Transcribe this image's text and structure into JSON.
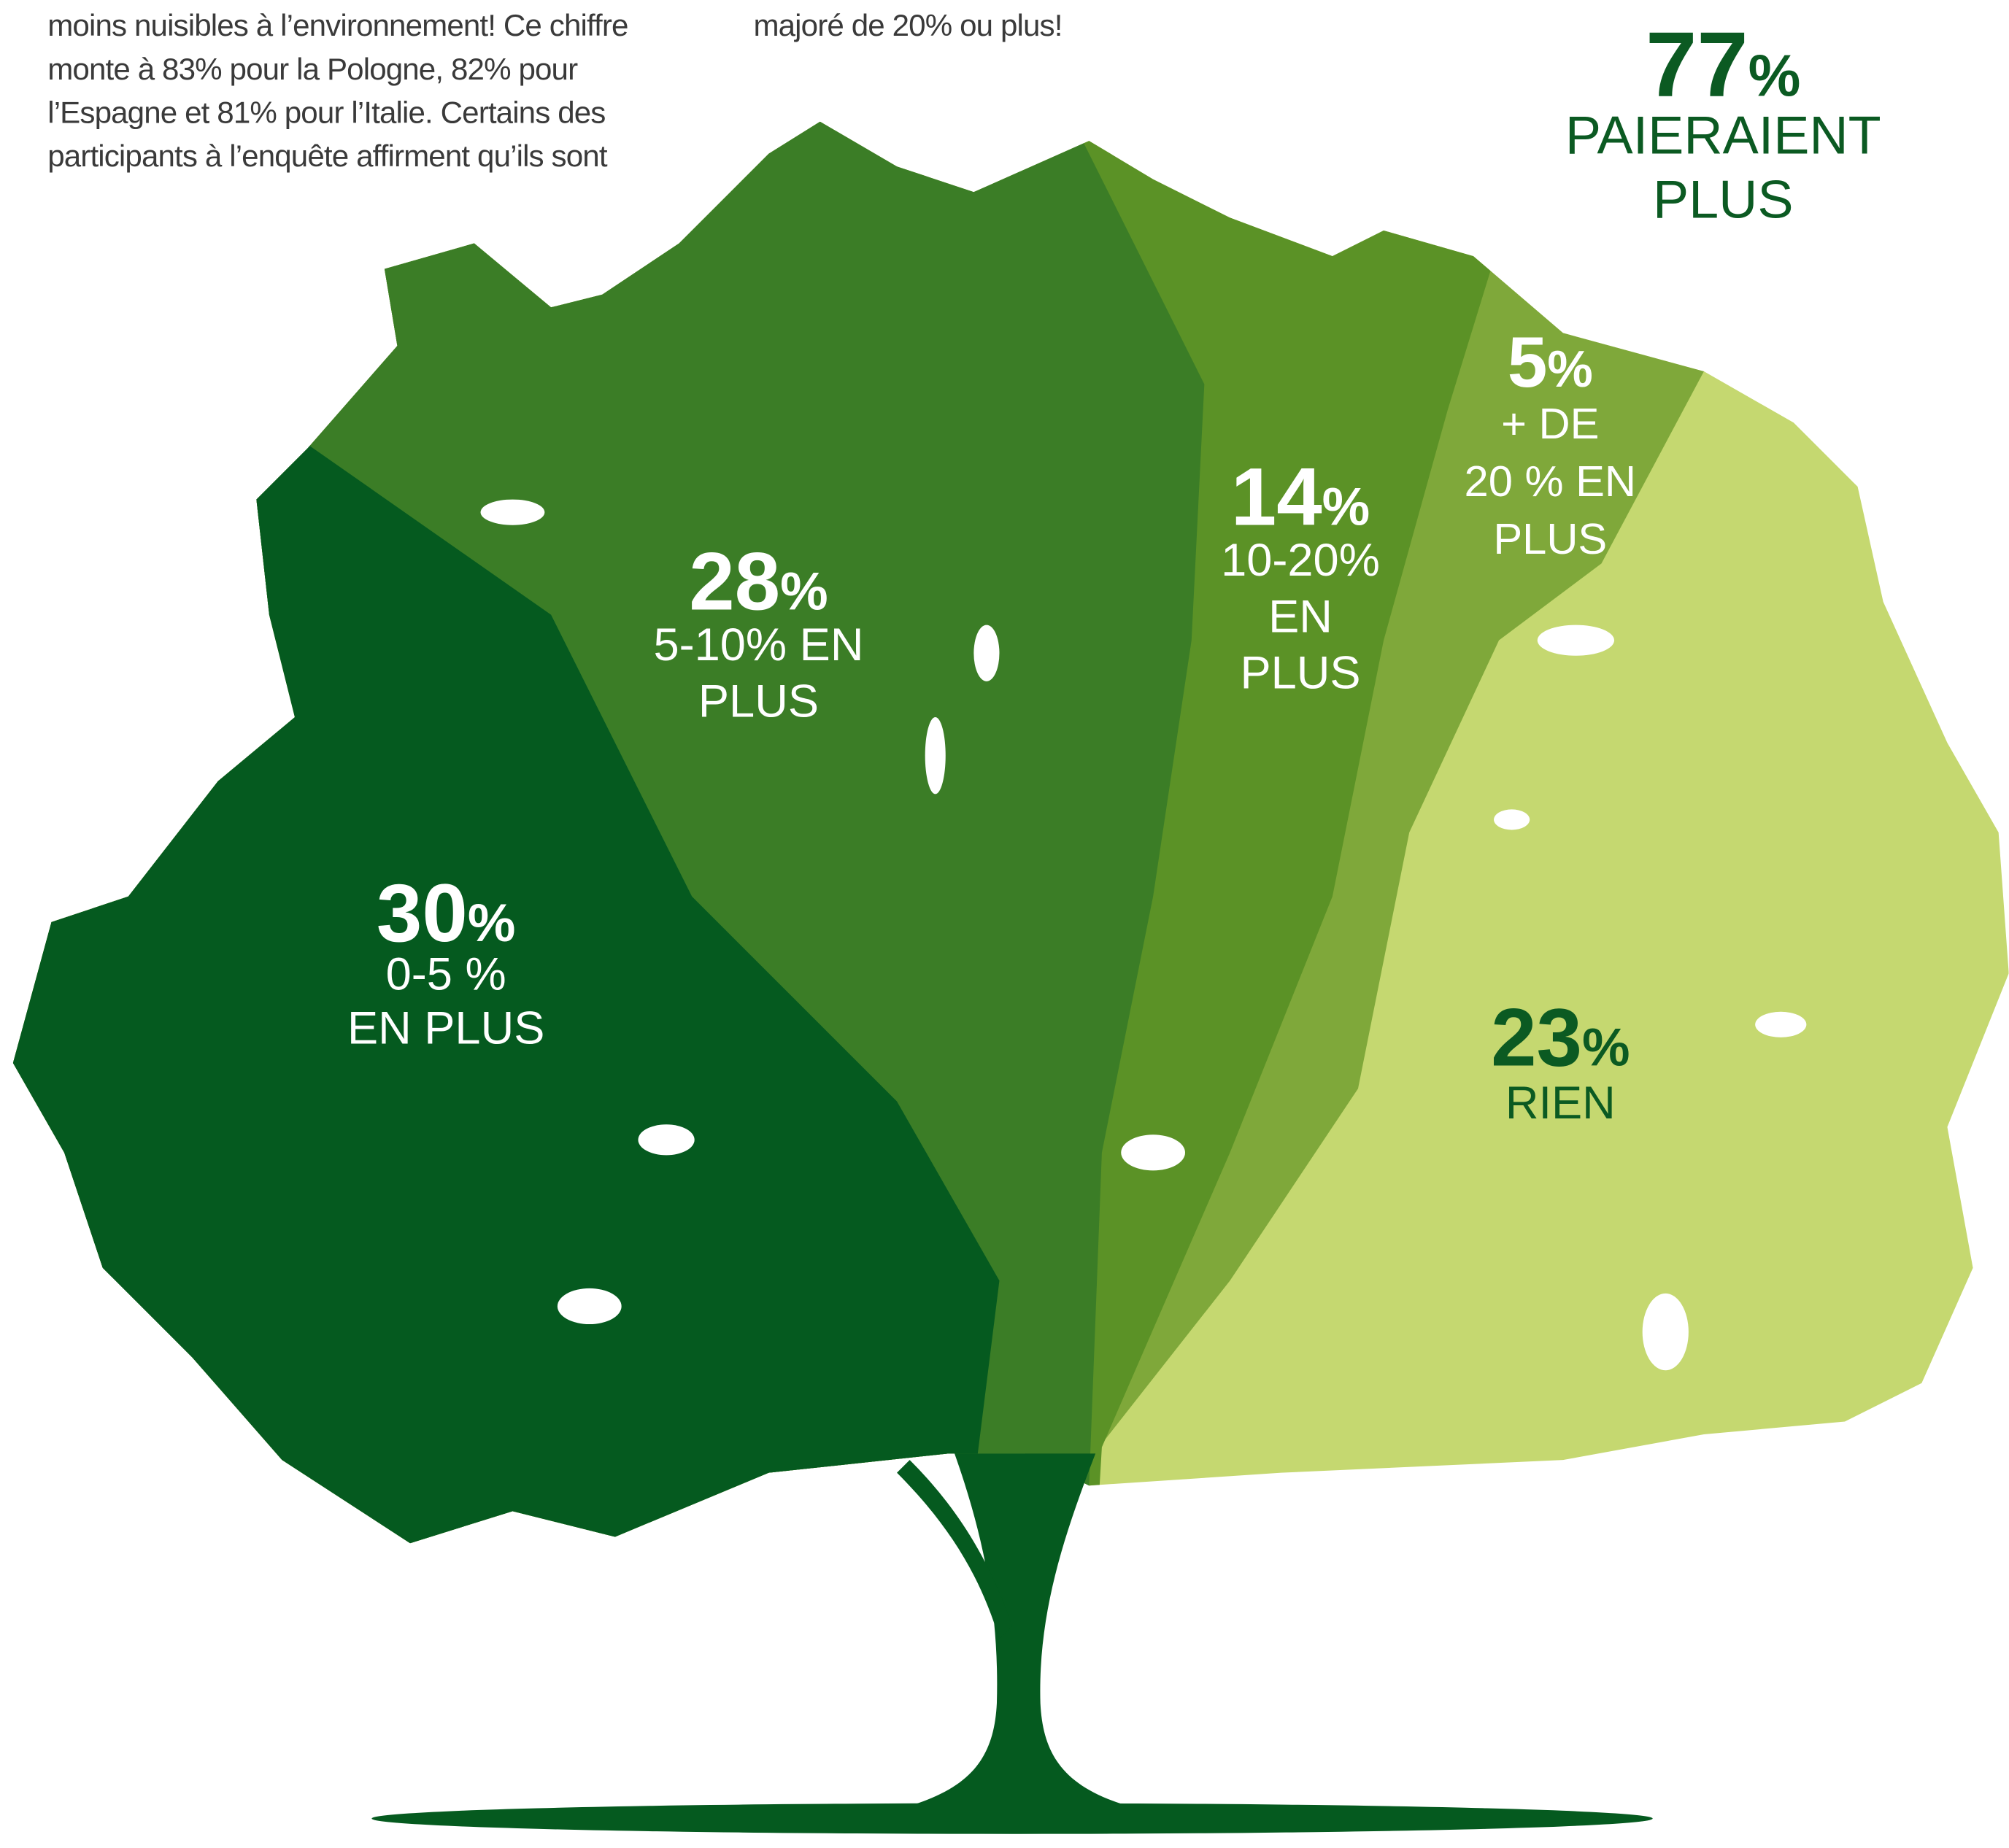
{
  "intro": {
    "left_lines": [
      "moins nuisibles à l’environnement! Ce chiffre",
      "monte à 83% pour la Pologne, 82% pour",
      "l’Espagne et 81% pour l’Italie. Certains des",
      "participants à l’enquête affirment qu’ils sont"
    ],
    "right_lines": [
      "majoré de 20% ou plus!"
    ]
  },
  "summary": {
    "value": "77",
    "unit": "%",
    "lines": [
      "PAIERAIENT",
      "PLUS"
    ]
  },
  "segments": [
    {
      "value": "30",
      "unit": "%",
      "lines": [
        "0-5 %",
        "EN PLUS"
      ]
    },
    {
      "value": "28",
      "unit": "%",
      "lines": [
        "5-10% EN",
        "PLUS"
      ]
    },
    {
      "value": "14",
      "unit": "%",
      "lines": [
        "10-20%",
        "EN",
        "PLUS"
      ]
    },
    {
      "value": "5",
      "unit": "%",
      "lines": [
        "+ DE",
        "20 % EN",
        "PLUS"
      ]
    },
    {
      "value": "23",
      "unit": "%",
      "lines": [
        "RIEN"
      ]
    }
  ]
}
